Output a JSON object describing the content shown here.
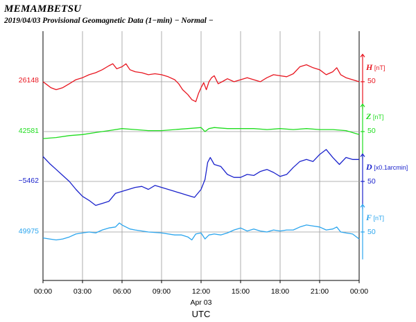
{
  "header": {
    "station": "MEMAMBETSU",
    "subtitle": "2019/04/03  Provisional Geomagnetic Data (1−min)  − Normal −"
  },
  "chart_data": {
    "type": "line",
    "title": "2019/04/03  Provisional Geomagnetic Data (1−min)  − Normal −",
    "xlabel": "UTC",
    "date_label": "Apr 03",
    "x_ticks": [
      "00:00",
      "03:00",
      "06:00",
      "09:00",
      "12:00",
      "15:00",
      "18:00",
      "21:00",
      "00:00"
    ],
    "xlim_hours": [
      0,
      24
    ],
    "grid": true,
    "series": [
      {
        "name": "H",
        "unit": "[nT]",
        "baseline": "26148",
        "scale_label": "50",
        "color": "#e8141e",
        "points": [
          [
            0,
            26148
          ],
          [
            0.3,
            26145
          ],
          [
            0.6,
            26142
          ],
          [
            1.0,
            26140
          ],
          [
            1.5,
            26142
          ],
          [
            2.0,
            26146
          ],
          [
            2.5,
            26150
          ],
          [
            3.0,
            26152
          ],
          [
            3.5,
            26155
          ],
          [
            4.0,
            26157
          ],
          [
            4.5,
            26160
          ],
          [
            5.0,
            26164
          ],
          [
            5.3,
            26166
          ],
          [
            5.6,
            26161
          ],
          [
            6.0,
            26163
          ],
          [
            6.3,
            26166
          ],
          [
            6.6,
            26160
          ],
          [
            7.0,
            26158
          ],
          [
            7.5,
            26157
          ],
          [
            8.0,
            26155
          ],
          [
            8.5,
            26156
          ],
          [
            9.0,
            26155
          ],
          [
            9.5,
            26153
          ],
          [
            10.0,
            26150
          ],
          [
            10.3,
            26146
          ],
          [
            10.6,
            26140
          ],
          [
            11.0,
            26135
          ],
          [
            11.3,
            26130
          ],
          [
            11.6,
            26128
          ],
          [
            11.8,
            26136
          ],
          [
            12.0,
            26142
          ],
          [
            12.2,
            26147
          ],
          [
            12.4,
            26140
          ],
          [
            12.6,
            26148
          ],
          [
            12.8,
            26152
          ],
          [
            13.0,
            26154
          ],
          [
            13.3,
            26146
          ],
          [
            13.6,
            26148
          ],
          [
            14.0,
            26151
          ],
          [
            14.5,
            26148
          ],
          [
            15.0,
            26150
          ],
          [
            15.5,
            26152
          ],
          [
            16.0,
            26150
          ],
          [
            16.5,
            26148
          ],
          [
            17.0,
            26152
          ],
          [
            17.5,
            26155
          ],
          [
            18.0,
            26154
          ],
          [
            18.5,
            26153
          ],
          [
            19.0,
            26156
          ],
          [
            19.5,
            26163
          ],
          [
            20.0,
            26165
          ],
          [
            20.5,
            26162
          ],
          [
            21.0,
            26160
          ],
          [
            21.5,
            26155
          ],
          [
            22.0,
            26158
          ],
          [
            22.3,
            26162
          ],
          [
            22.6,
            26155
          ],
          [
            23.0,
            26152
          ],
          [
            23.5,
            26150
          ],
          [
            24.0,
            26148
          ]
        ]
      },
      {
        "name": "Z",
        "unit": "[nT]",
        "baseline": "42581",
        "scale_label": "50",
        "color": "#1ddd1d",
        "points": [
          [
            0,
            42574
          ],
          [
            1.0,
            42575
          ],
          [
            2.0,
            42577
          ],
          [
            3.0,
            42578
          ],
          [
            4.0,
            42580
          ],
          [
            5.0,
            42582
          ],
          [
            6.0,
            42584
          ],
          [
            7.0,
            42583
          ],
          [
            8.0,
            42582
          ],
          [
            9.0,
            42582
          ],
          [
            10.0,
            42583
          ],
          [
            11.0,
            42584
          ],
          [
            12.0,
            42585
          ],
          [
            12.3,
            42581
          ],
          [
            12.6,
            42584
          ],
          [
            13.0,
            42585
          ],
          [
            14.0,
            42584
          ],
          [
            15.0,
            42584
          ],
          [
            16.0,
            42584
          ],
          [
            17.0,
            42583
          ],
          [
            18.0,
            42584
          ],
          [
            19.0,
            42583
          ],
          [
            20.0,
            42584
          ],
          [
            21.0,
            42583
          ],
          [
            22.0,
            42583
          ],
          [
            23.0,
            42582
          ],
          [
            24.0,
            42578
          ]
        ]
      },
      {
        "name": "D",
        "unit": "[x0.1arcmin]",
        "baseline": "−5462",
        "scale_label": "50",
        "color": "#1a22cc",
        "points": [
          [
            0,
            -5437
          ],
          [
            0.5,
            -5444
          ],
          [
            1.0,
            -5450
          ],
          [
            1.5,
            -5456
          ],
          [
            2.0,
            -5462
          ],
          [
            2.5,
            -5470
          ],
          [
            3.0,
            -5477
          ],
          [
            3.5,
            -5481
          ],
          [
            4.0,
            -5486
          ],
          [
            4.5,
            -5484
          ],
          [
            5.0,
            -5482
          ],
          [
            5.5,
            -5474
          ],
          [
            6.0,
            -5472
          ],
          [
            6.5,
            -5470
          ],
          [
            7.0,
            -5468
          ],
          [
            7.5,
            -5467
          ],
          [
            8.0,
            -5470
          ],
          [
            8.5,
            -5466
          ],
          [
            9.0,
            -5468
          ],
          [
            9.5,
            -5470
          ],
          [
            10.0,
            -5472
          ],
          [
            10.5,
            -5474
          ],
          [
            11.0,
            -5476
          ],
          [
            11.5,
            -5478
          ],
          [
            12.0,
            -5470
          ],
          [
            12.3,
            -5460
          ],
          [
            12.5,
            -5443
          ],
          [
            12.7,
            -5438
          ],
          [
            13.0,
            -5445
          ],
          [
            13.5,
            -5447
          ],
          [
            14.0,
            -5455
          ],
          [
            14.5,
            -5458
          ],
          [
            15.0,
            -5458
          ],
          [
            15.5,
            -5455
          ],
          [
            16.0,
            -5456
          ],
          [
            16.5,
            -5452
          ],
          [
            17.0,
            -5450
          ],
          [
            17.5,
            -5453
          ],
          [
            18.0,
            -5457
          ],
          [
            18.5,
            -5455
          ],
          [
            19.0,
            -5448
          ],
          [
            19.5,
            -5442
          ],
          [
            20.0,
            -5440
          ],
          [
            20.5,
            -5442
          ],
          [
            21.0,
            -5435
          ],
          [
            21.5,
            -5430
          ],
          [
            22.0,
            -5438
          ],
          [
            22.5,
            -5445
          ],
          [
            23.0,
            -5438
          ],
          [
            23.5,
            -5440
          ],
          [
            24.0,
            -5440
          ]
        ]
      },
      {
        "name": "F",
        "unit": "[nT]",
        "baseline": "49975",
        "scale_label": "50",
        "color": "#2aa5ee",
        "points": [
          [
            0,
            49969
          ],
          [
            0.5,
            49968
          ],
          [
            1.0,
            49967
          ],
          [
            1.5,
            49968
          ],
          [
            2.0,
            49970
          ],
          [
            2.5,
            49973
          ],
          [
            3.0,
            49974
          ],
          [
            3.5,
            49975
          ],
          [
            4.0,
            49974
          ],
          [
            4.5,
            49977
          ],
          [
            5.0,
            49979
          ],
          [
            5.5,
            49980
          ],
          [
            5.8,
            49984
          ],
          [
            6.0,
            49982
          ],
          [
            6.3,
            49980
          ],
          [
            6.6,
            49978
          ],
          [
            7.0,
            49977
          ],
          [
            8.0,
            49975
          ],
          [
            9.0,
            49974
          ],
          [
            10.0,
            49972
          ],
          [
            10.5,
            49972
          ],
          [
            11.0,
            49970
          ],
          [
            11.3,
            49967
          ],
          [
            11.6,
            49973
          ],
          [
            12.0,
            49974
          ],
          [
            12.3,
            49968
          ],
          [
            12.6,
            49972
          ],
          [
            13.0,
            49973
          ],
          [
            13.5,
            49972
          ],
          [
            14.0,
            49974
          ],
          [
            14.5,
            49977
          ],
          [
            15.0,
            49979
          ],
          [
            15.5,
            49976
          ],
          [
            16.0,
            49978
          ],
          [
            16.5,
            49976
          ],
          [
            17.0,
            49975
          ],
          [
            17.5,
            49977
          ],
          [
            18.0,
            49976
          ],
          [
            18.5,
            49977
          ],
          [
            19.0,
            49977
          ],
          [
            19.5,
            49980
          ],
          [
            20.0,
            49982
          ],
          [
            20.5,
            49981
          ],
          [
            21.0,
            49980
          ],
          [
            21.5,
            49977
          ],
          [
            22.0,
            49978
          ],
          [
            22.3,
            49980
          ],
          [
            22.6,
            49975
          ],
          [
            23.0,
            49974
          ],
          [
            23.5,
            49973
          ],
          [
            24.0,
            49968
          ]
        ]
      }
    ]
  }
}
